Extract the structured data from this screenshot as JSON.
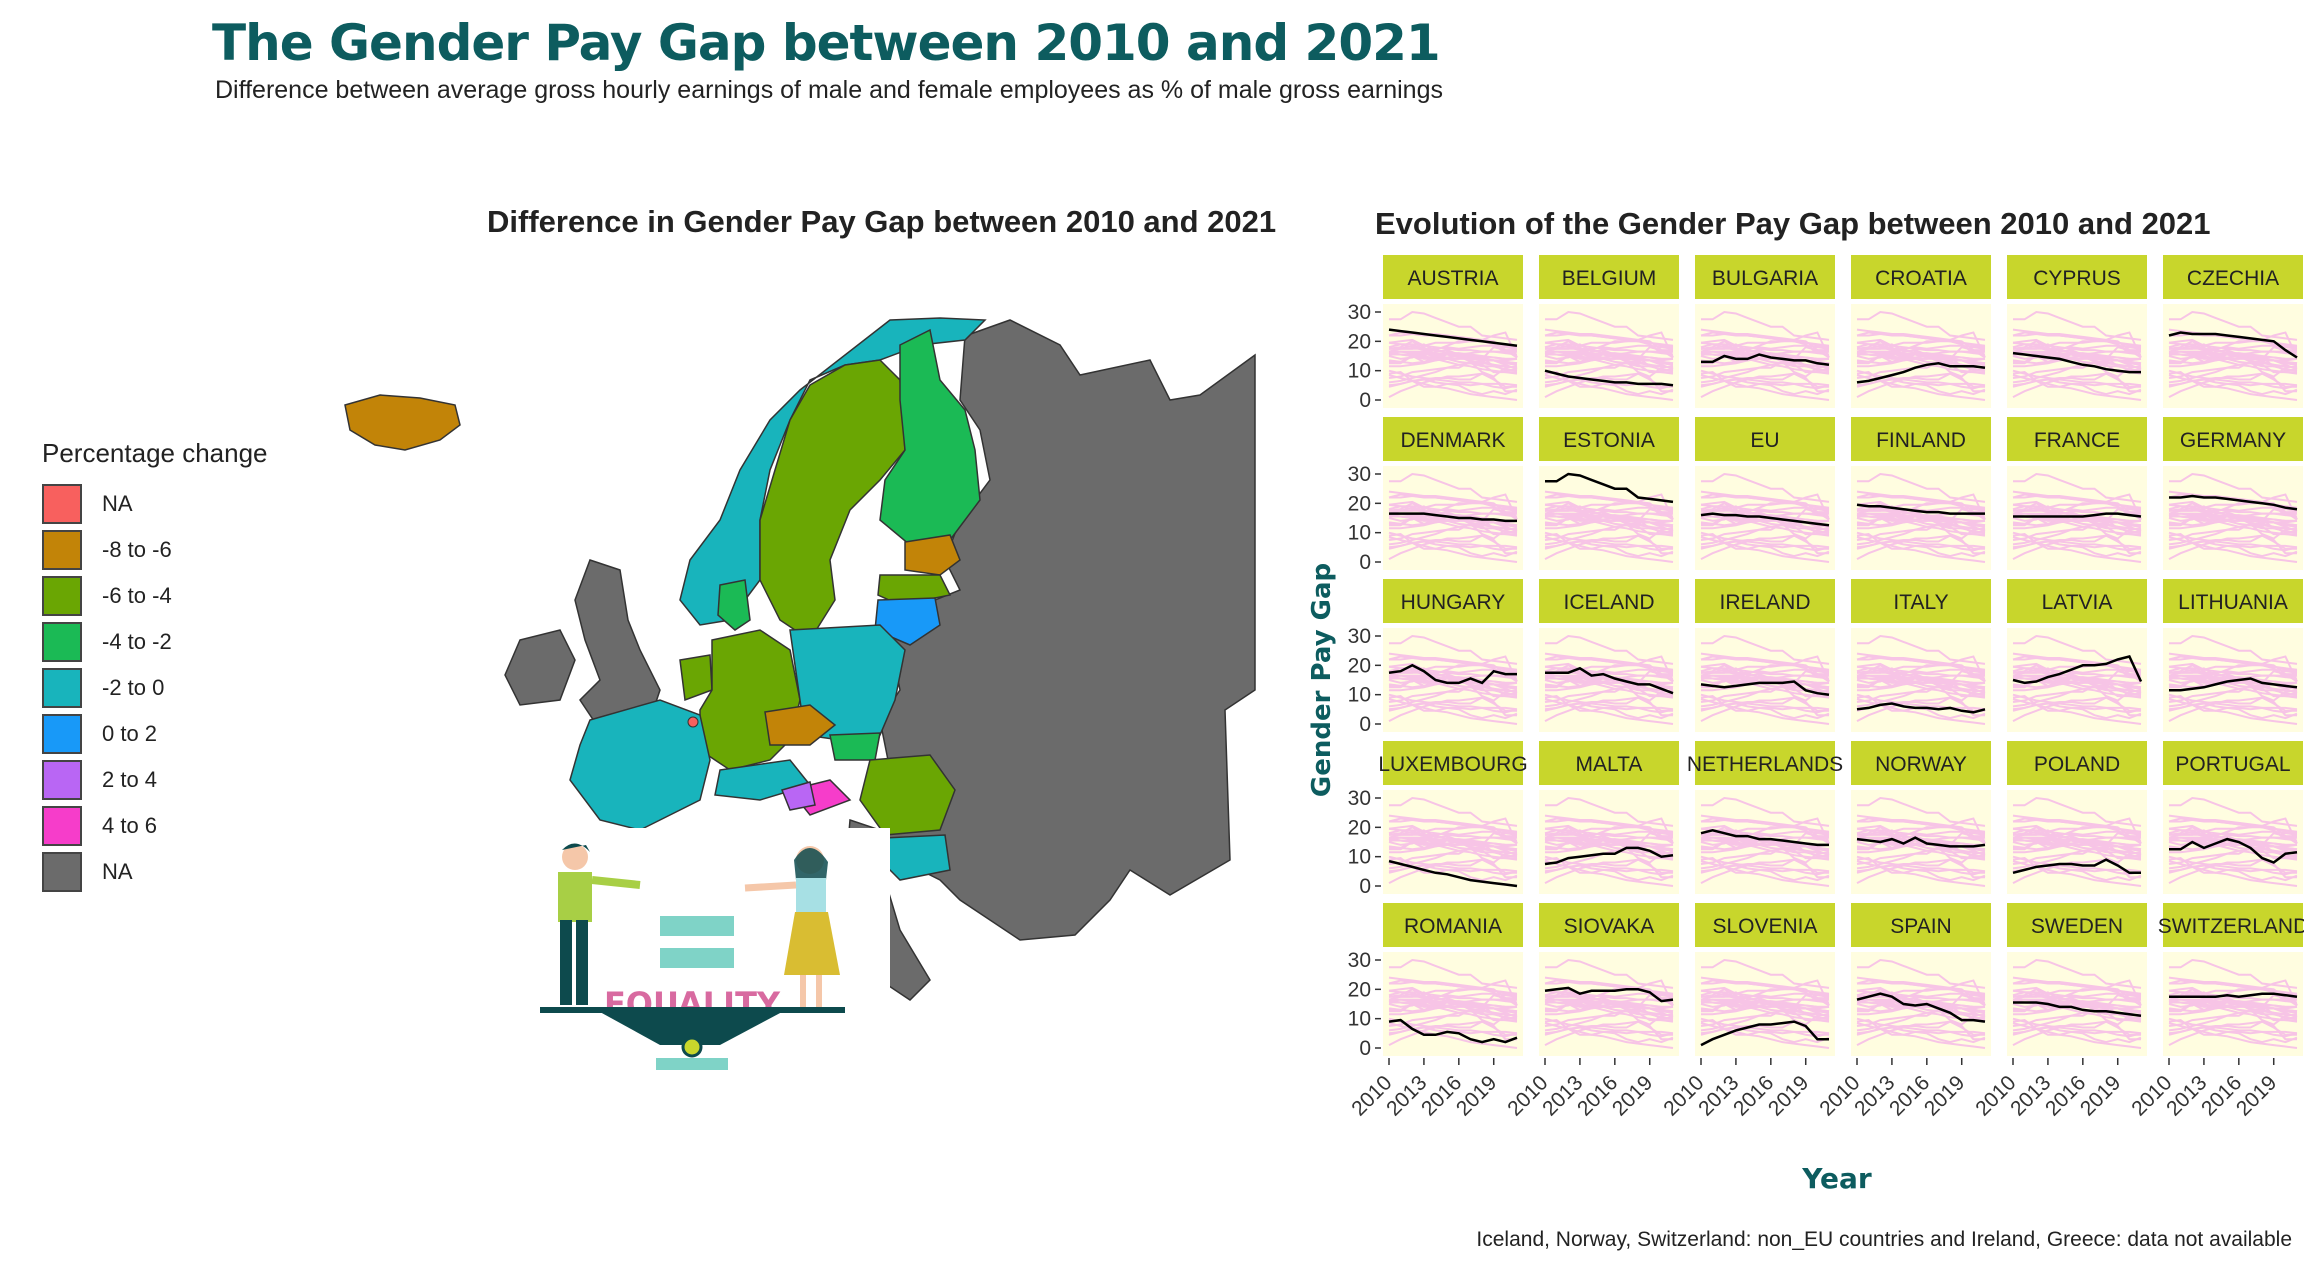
{
  "header": {
    "title": "The Gender Pay Gap between 2010 and 2021",
    "subtitle": "Difference between average gross hourly earnings of male and female employees as % of male gross earnings"
  },
  "map": {
    "title": "Difference in Gender Pay Gap between 2010 and 2021",
    "illustration_label": "EQUALITY"
  },
  "legend": {
    "title": "Percentage change",
    "items": [
      {
        "label": "NA",
        "color": "#f8605e"
      },
      {
        "label": "-8 to -6",
        "color": "#c28408"
      },
      {
        "label": "-6 to -4",
        "color": "#6aa603"
      },
      {
        "label": "-4 to -2",
        "color": "#1bba55"
      },
      {
        "label": "-2 to 0",
        "color": "#18b4bc"
      },
      {
        "label": "0 to 2",
        "color": "#1899f8"
      },
      {
        "label": "2 to 4",
        "color": "#b966f4"
      },
      {
        "label": "4 to 6",
        "color": "#f63dca"
      },
      {
        "label": "NA",
        "color": "#6b6b6b"
      }
    ]
  },
  "colors": {
    "title": "#0d5c5f",
    "strip": "#c8d62c",
    "panel": "#fffde0",
    "background_lines": "#f7c4e6",
    "highlight_line": "#000000"
  },
  "caption": "Iceland, Norway, Switzerland: non_EU countries and Ireland, Greece: data not available",
  "chart_data": {
    "type": "line",
    "title": "Evolution of the Gender Pay Gap between 2010 and 2021",
    "xlabel": "Year",
    "ylabel": "Gender Pay Gap",
    "x": [
      2010,
      2011,
      2012,
      2013,
      2014,
      2015,
      2016,
      2017,
      2018,
      2019,
      2020,
      2021
    ],
    "x_ticks": [
      2010,
      2013,
      2016,
      2019
    ],
    "y_ticks": [
      0,
      10,
      20,
      30
    ],
    "ylim": [
      0,
      30
    ],
    "facets": [
      {
        "name": "AUSTRIA",
        "values": [
          24,
          23.5,
          23,
          22.5,
          22,
          21.5,
          21,
          20.5,
          20,
          19.5,
          19,
          18.5
        ]
      },
      {
        "name": "BELGIUM",
        "values": [
          10,
          9,
          8,
          7.5,
          7,
          6.5,
          6,
          6,
          5.5,
          5.5,
          5.5,
          5
        ]
      },
      {
        "name": "BULGARIA",
        "values": [
          13,
          13,
          15,
          14,
          14,
          15.5,
          14.5,
          14,
          13.5,
          13.5,
          12.5,
          12
        ]
      },
      {
        "name": "CROATIA",
        "values": [
          6,
          6.5,
          7.5,
          8.5,
          9.5,
          11,
          12,
          12.5,
          11.5,
          11.5,
          11.5,
          11
        ]
      },
      {
        "name": "CYPRUS",
        "values": [
          16,
          15.5,
          15,
          14.5,
          14,
          13,
          12,
          11.5,
          10.5,
          10,
          9.5,
          9.5
        ]
      },
      {
        "name": "CZECHIA",
        "values": [
          22,
          23,
          22.5,
          22.5,
          22.5,
          22,
          21.5,
          21,
          20.5,
          20,
          17,
          14.5
        ]
      },
      {
        "name": "DENMARK",
        "values": [
          16.5,
          16.5,
          16.5,
          16.5,
          16,
          15.5,
          15,
          15,
          14.5,
          14.5,
          14,
          14
        ]
      },
      {
        "name": "ESTONIA",
        "values": [
          27.5,
          27.5,
          30,
          29.5,
          28,
          26.5,
          25,
          25,
          22,
          21.5,
          21,
          20.5
        ]
      },
      {
        "name": "EU",
        "values": [
          16,
          16.5,
          16,
          16,
          15.5,
          15.5,
          15,
          14.5,
          14,
          13.5,
          13,
          12.5
        ]
      },
      {
        "name": "FINLAND",
        "values": [
          19.5,
          19,
          19,
          18.5,
          18,
          17.5,
          17,
          17,
          16.5,
          16.5,
          16.5,
          16.5
        ]
      },
      {
        "name": "FRANCE",
        "values": [
          15.5,
          15.5,
          15.5,
          15.5,
          15.5,
          15.5,
          15.5,
          16,
          16.5,
          16.5,
          16,
          15.5
        ]
      },
      {
        "name": "GERMANY",
        "values": [
          22,
          22,
          22.5,
          22,
          22,
          21.5,
          21,
          20.5,
          20,
          19.5,
          18.5,
          18
        ]
      },
      {
        "name": "HUNGARY",
        "values": [
          17.5,
          18,
          20,
          18,
          15,
          14,
          14,
          15.5,
          14,
          18,
          17,
          17
        ]
      },
      {
        "name": "ICELAND",
        "values": [
          17.5,
          17.5,
          17.5,
          19,
          16.5,
          17,
          15.5,
          14.5,
          13.5,
          13.5,
          12,
          10.5
        ]
      },
      {
        "name": "IRELAND",
        "values": [
          13.5,
          13,
          12.5,
          13,
          13.5,
          14,
          14,
          14,
          14.5,
          11.5,
          10.5,
          10
        ]
      },
      {
        "name": "ITALY",
        "values": [
          5,
          5.5,
          6.5,
          7,
          6,
          5.5,
          5.5,
          5,
          5.5,
          4.5,
          4,
          5
        ]
      },
      {
        "name": "LATVIA",
        "values": [
          15,
          14,
          14.5,
          16,
          17,
          18.5,
          20,
          20,
          20.5,
          22,
          23,
          14.5
        ]
      },
      {
        "name": "LITHUANIA",
        "values": [
          11.5,
          11.5,
          12,
          12.5,
          13.5,
          14.5,
          15,
          15.5,
          14,
          13.5,
          13,
          12.5
        ]
      },
      {
        "name": "LUXEMBOURG",
        "values": [
          8.5,
          7.5,
          6.5,
          5.5,
          4.5,
          4,
          3,
          2,
          1.5,
          1,
          0.5,
          0
        ]
      },
      {
        "name": "MALTA",
        "values": [
          7.5,
          8,
          9.5,
          10,
          10.5,
          11,
          11,
          13,
          13,
          12,
          10,
          10.5
        ]
      },
      {
        "name": "NETHERLANDS",
        "values": [
          18,
          19,
          18,
          17,
          17,
          16,
          16,
          15.5,
          15,
          14.5,
          14,
          14
        ]
      },
      {
        "name": "NORWAY",
        "values": [
          16,
          15.5,
          15,
          16,
          14.5,
          16.5,
          14.5,
          14,
          13.5,
          13.5,
          13.5,
          14
        ]
      },
      {
        "name": "POLAND",
        "values": [
          4.5,
          5.5,
          6.5,
          7,
          7.5,
          7.5,
          7,
          7,
          9,
          7,
          4.5,
          4.5
        ]
      },
      {
        "name": "PORTUGAL",
        "values": [
          12.5,
          12.5,
          15,
          13,
          14.5,
          16,
          15,
          13,
          9.5,
          8,
          11,
          11.5
        ]
      },
      {
        "name": "ROMANIA",
        "values": [
          9,
          9.5,
          6.5,
          4.5,
          4.5,
          5.5,
          5,
          3,
          2,
          3,
          2,
          3.5
        ]
      },
      {
        "name": "SIOVAKA",
        "values": [
          19.5,
          20,
          20.5,
          18.5,
          19.5,
          19.5,
          19.5,
          20,
          20,
          19,
          16,
          16.5
        ]
      },
      {
        "name": "SLOVENIA",
        "values": [
          1,
          3,
          4.5,
          6,
          7,
          8,
          8,
          8.5,
          9,
          7.5,
          3,
          3
        ]
      },
      {
        "name": "SPAIN",
        "values": [
          16.5,
          17.5,
          18.5,
          17.5,
          15,
          14.5,
          15,
          13.5,
          12,
          9.5,
          9.5,
          9
        ]
      },
      {
        "name": "SWEDEN",
        "values": [
          15.5,
          15.5,
          15.5,
          15,
          14,
          14,
          13,
          12.5,
          12.5,
          12,
          11.5,
          11
        ]
      },
      {
        "name": "SWITZERLAND",
        "values": [
          17.5,
          17.5,
          17.5,
          17.5,
          17.5,
          18,
          17.5,
          18,
          18.5,
          18.5,
          18,
          17.5
        ]
      }
    ]
  }
}
